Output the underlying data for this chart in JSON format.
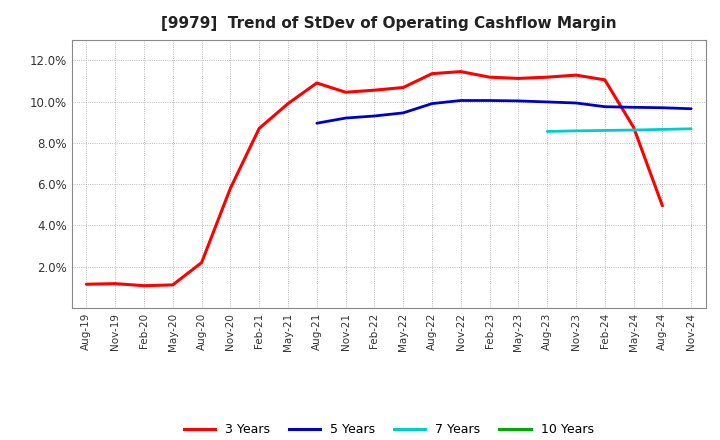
{
  "title": "[9979]  Trend of StDev of Operating Cashflow Margin",
  "title_fontsize": 11,
  "ylim": [
    0.0,
    0.13
  ],
  "yticks": [
    0.02,
    0.04,
    0.06,
    0.08,
    0.1,
    0.12
  ],
  "background_color": "#ffffff",
  "plot_bg_color": "#ffffff",
  "grid_color": "#999999",
  "series": {
    "3 Years": {
      "color": "#ff0000",
      "linewidth": 2.2,
      "dates": [
        "Aug-19",
        "Nov-19",
        "Feb-20",
        "May-20",
        "Aug-20",
        "Nov-20",
        "Feb-21",
        "May-21",
        "Aug-21",
        "Nov-21",
        "Feb-22",
        "May-22",
        "Aug-22",
        "Nov-22",
        "Feb-23",
        "May-23",
        "Aug-23",
        "Nov-23",
        "Feb-24",
        "May-24",
        "Aug-24",
        "Nov-24"
      ],
      "values": [
        0.0115,
        0.0118,
        0.0108,
        0.0112,
        0.022,
        0.058,
        0.087,
        0.099,
        0.109,
        0.1045,
        0.1055,
        0.1068,
        0.1135,
        0.1145,
        0.1118,
        0.1112,
        0.1118,
        0.1128,
        0.1105,
        0.0875,
        0.0495,
        null
      ]
    },
    "5 Years": {
      "color": "#0000cc",
      "linewidth": 2.0,
      "dates": [
        "Aug-19",
        "Nov-19",
        "Feb-20",
        "May-20",
        "Aug-20",
        "Nov-20",
        "Feb-21",
        "May-21",
        "Aug-21",
        "Nov-21",
        "Feb-22",
        "May-22",
        "Aug-22",
        "Nov-22",
        "Feb-23",
        "May-23",
        "Aug-23",
        "Nov-23",
        "Feb-24",
        "May-24",
        "Aug-24",
        "Nov-24"
      ],
      "values": [
        null,
        null,
        null,
        null,
        null,
        null,
        null,
        null,
        0.0895,
        0.092,
        0.093,
        0.0945,
        0.099,
        0.1005,
        0.1005,
        0.1003,
        0.0998,
        0.0993,
        0.0975,
        0.0972,
        0.097,
        0.0965
      ]
    },
    "7 Years": {
      "color": "#00cccc",
      "linewidth": 2.0,
      "dates": [
        "Aug-19",
        "Nov-19",
        "Feb-20",
        "May-20",
        "Aug-20",
        "Nov-20",
        "Feb-21",
        "May-21",
        "Aug-21",
        "Nov-21",
        "Feb-22",
        "May-22",
        "Aug-22",
        "Nov-22",
        "Feb-23",
        "May-23",
        "Aug-23",
        "Nov-23",
        "Feb-24",
        "May-24",
        "Aug-24",
        "Nov-24"
      ],
      "values": [
        null,
        null,
        null,
        null,
        null,
        null,
        null,
        null,
        null,
        null,
        null,
        null,
        null,
        null,
        null,
        null,
        0.0855,
        0.0858,
        0.086,
        0.0862,
        0.0865,
        0.0868
      ]
    },
    "10 Years": {
      "color": "#00aa00",
      "linewidth": 2.0,
      "dates": [
        "Aug-19",
        "Nov-19",
        "Feb-20",
        "May-20",
        "Aug-20",
        "Nov-20",
        "Feb-21",
        "May-21",
        "Aug-21",
        "Nov-21",
        "Feb-22",
        "May-22",
        "Aug-22",
        "Nov-22",
        "Feb-23",
        "May-23",
        "Aug-23",
        "Nov-23",
        "Feb-24",
        "May-24",
        "Aug-24",
        "Nov-24"
      ],
      "values": [
        null,
        null,
        null,
        null,
        null,
        null,
        null,
        null,
        null,
        null,
        null,
        null,
        null,
        null,
        null,
        null,
        null,
        null,
        null,
        null,
        null,
        null
      ]
    }
  },
  "xtick_labels": [
    "Aug-19",
    "Nov-19",
    "Feb-20",
    "May-20",
    "Aug-20",
    "Nov-20",
    "Feb-21",
    "May-21",
    "Aug-21",
    "Nov-21",
    "Feb-22",
    "May-22",
    "Aug-22",
    "Nov-22",
    "Feb-23",
    "May-23",
    "Aug-23",
    "Nov-23",
    "Feb-24",
    "May-24",
    "Aug-24",
    "Nov-24"
  ],
  "legend_labels": [
    "3 Years",
    "5 Years",
    "7 Years",
    "10 Years"
  ],
  "legend_colors": [
    "#ff0000",
    "#0000cc",
    "#00cccc",
    "#00aa00"
  ]
}
